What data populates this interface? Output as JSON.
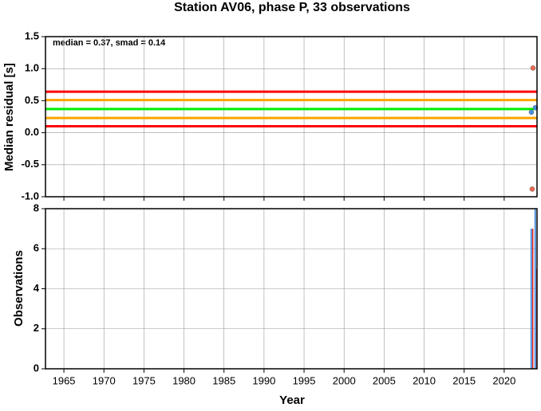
{
  "chart_data": [
    {
      "type": "scatter",
      "title": "Station AV06, phase P, 33 observations",
      "y_label": "Median residual [s]",
      "annotation": "median = 0.37, smad = 0.14",
      "xlim": [
        1962.7,
        2024.1
      ],
      "xticks": [
        1965,
        1970,
        1975,
        1980,
        1985,
        1990,
        1995,
        2000,
        2005,
        2010,
        2015,
        2020
      ],
      "ylim": [
        -1,
        1.5
      ],
      "yticks": [
        1.5,
        {
          "value": 1,
          "label": "1.0"
        },
        0.5,
        {
          "value": 0,
          "label": "0.0"
        },
        -0.5,
        {
          "value": -1,
          "label": "-1.0"
        }
      ],
      "grid": true,
      "hlines": [
        {
          "value": 0.64,
          "color": "#ff0000"
        },
        {
          "value": 0.51,
          "color": "#ffa500"
        },
        {
          "value": 0.37,
          "color": "#00ee00"
        },
        {
          "value": 0.23,
          "color": "#ffa500"
        },
        {
          "value": 0.1,
          "color": "#ff0000"
        }
      ],
      "series": [
        {
          "color": "#f26a4f",
          "x": [
            2023.6,
            2023.5
          ],
          "values": [
            1.01,
            -0.88
          ]
        },
        {
          "color": "#4a90e2",
          "x": [
            2023.4,
            2023.9
          ],
          "values": [
            0.32,
            0.39
          ]
        }
      ]
    },
    {
      "type": "bar",
      "x_label": "Year",
      "y_label": "Observations",
      "xlim": [
        1962.7,
        2024.1
      ],
      "xticks": [
        1965,
        1970,
        1975,
        1980,
        1985,
        1990,
        1995,
        2000,
        2005,
        2010,
        2015,
        2020
      ],
      "ylim": [
        0,
        8
      ],
      "yticks": [
        0,
        2,
        4,
        6,
        8
      ],
      "grid": true,
      "x": [
        2023.4,
        2023.9
      ],
      "series": [
        {
          "color": "#1f6fd1",
          "values": [
            7,
            8
          ]
        },
        {
          "color": "#e02020",
          "values": [
            7,
            5
          ]
        }
      ]
    }
  ]
}
